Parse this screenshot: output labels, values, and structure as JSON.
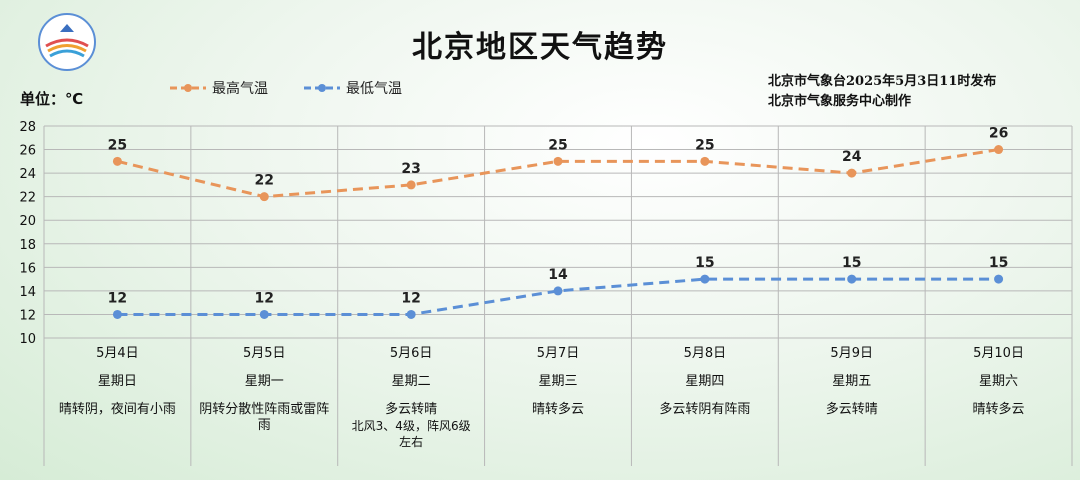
{
  "title": "北京地区天气趋势",
  "unit_label": "单位：℃",
  "source_line1": "北京市气象台2025年5月3日11时发布",
  "source_line2": "北京市气象服务中心制作",
  "colors": {
    "high": "#e8955a",
    "low": "#5b8fd6",
    "grid": "#b8b8b8"
  },
  "chart_data": {
    "type": "line",
    "ylim": [
      10,
      28
    ],
    "yticks": [
      10,
      12,
      14,
      16,
      18,
      20,
      22,
      24,
      26,
      28
    ],
    "categories": [
      "5月4日",
      "5月5日",
      "5月6日",
      "5月7日",
      "5月8日",
      "5月9日",
      "5月10日"
    ],
    "series": [
      {
        "name": "最高气温",
        "values": [
          25,
          22,
          23,
          25,
          25,
          24,
          26
        ]
      },
      {
        "name": "最低气温",
        "values": [
          12,
          12,
          12,
          14,
          15,
          15,
          15
        ]
      }
    ]
  },
  "days": [
    {
      "date": "5月4日",
      "weekday": "星期日",
      "weather": "晴转阴，夜间有小雨",
      "wind": ""
    },
    {
      "date": "5月5日",
      "weekday": "星期一",
      "weather": "阴转分散性阵雨或雷阵雨",
      "wind": ""
    },
    {
      "date": "5月6日",
      "weekday": "星期二",
      "weather": "多云转晴",
      "wind": "北风3、4级，阵风6级左右"
    },
    {
      "date": "5月7日",
      "weekday": "星期三",
      "weather": "晴转多云",
      "wind": ""
    },
    {
      "date": "5月8日",
      "weekday": "星期四",
      "weather": "多云转阴有阵雨",
      "wind": ""
    },
    {
      "date": "5月9日",
      "weekday": "星期五",
      "weather": "多云转晴",
      "wind": ""
    },
    {
      "date": "5月10日",
      "weekday": "星期六",
      "weather": "晴转多云",
      "wind": ""
    }
  ]
}
